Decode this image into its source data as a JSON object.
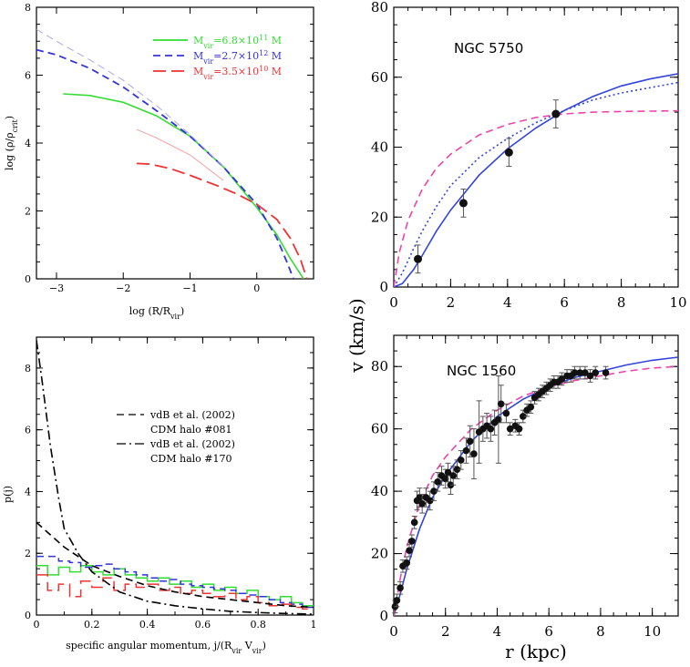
{
  "chart_data": [
    {
      "id": "density",
      "type": "line",
      "xlabel": "log (R/R",
      "xlabel_sub": "vir",
      "xlabel_close": ")",
      "ylabel": "log (ρ/ρ",
      "ylabel_sub": "crit",
      "ylabel_close": ")",
      "xlim": [
        -3.3,
        0.85
      ],
      "ylim": [
        0,
        8
      ],
      "xticks": [
        -3,
        -2,
        -1,
        0
      ],
      "xtick_labels": [
        "−3",
        "−2",
        "−1",
        "0"
      ],
      "yticks": [
        0,
        2,
        4,
        6,
        8
      ],
      "ytick_labels": [
        "0",
        "2",
        "4",
        "6",
        "8"
      ],
      "legend": [
        {
          "text": "M",
          "sub": "vir",
          "value": "=6.8×10",
          "exp": "11",
          "unit": "M",
          "color": "#33dd33"
        },
        {
          "text": "M",
          "sub": "vir",
          "value": "=2.7×10",
          "exp": "12",
          "unit": "M",
          "color": "#3333dd"
        },
        {
          "text": "M",
          "sub": "vir",
          "value": "=3.5×10",
          "exp": "10",
          "unit": "M",
          "color": "#ee3333"
        }
      ],
      "series": [
        {
          "color": "#33dd33",
          "style": "solid",
          "width": 1.6,
          "x": [
            -2.9,
            -2.5,
            -2.0,
            -1.5,
            -1.0,
            -0.5,
            0.0,
            0.3,
            0.5,
            0.6,
            0.7
          ],
          "y": [
            5.45,
            5.4,
            5.2,
            4.8,
            4.2,
            3.3,
            2.1,
            1.3,
            0.6,
            0.3,
            0.0
          ]
        },
        {
          "color": "#3333dd",
          "style": "dash",
          "width": 1.8,
          "x": [
            -3.3,
            -3.0,
            -2.5,
            -2.0,
            -1.5,
            -1.0,
            -0.5,
            0.0,
            0.3,
            0.45,
            0.55
          ],
          "y": [
            6.75,
            6.6,
            6.2,
            5.65,
            4.95,
            4.2,
            3.3,
            2.2,
            1.2,
            0.5,
            0.0
          ]
        },
        {
          "color": "#aaaaee",
          "style": "dash",
          "width": 1.0,
          "x": [
            -3.3,
            -3.0,
            -2.5,
            -2.0,
            -1.5,
            -1.0,
            -0.5
          ],
          "y": [
            7.35,
            7.0,
            6.45,
            5.85,
            5.1,
            4.25,
            3.3
          ]
        },
        {
          "color": "#ee3333",
          "style": "longdash",
          "width": 1.8,
          "x": [
            -1.8,
            -1.6,
            -1.3,
            -1.0,
            -0.6,
            -0.3,
            0.0,
            0.3,
            0.5,
            0.65,
            0.75
          ],
          "y": [
            3.4,
            3.38,
            3.25,
            3.05,
            2.75,
            2.5,
            2.2,
            1.75,
            1.2,
            0.6,
            0.0
          ]
        },
        {
          "color": "#f0a0a0",
          "style": "solid",
          "width": 1.0,
          "x": [
            -1.8,
            -1.5,
            -1.0,
            -0.5
          ],
          "y": [
            4.4,
            4.15,
            3.65,
            2.9
          ]
        }
      ]
    },
    {
      "id": "ngc5750",
      "type": "line",
      "galaxy_label": "NGC 5750",
      "xlim": [
        0,
        10
      ],
      "ylim": [
        0,
        80
      ],
      "xticks": [
        0,
        2,
        4,
        6,
        8,
        10
      ],
      "xtick_labels": [
        "0",
        "2",
        "4",
        "6",
        "8",
        "10"
      ],
      "yticks": [
        0,
        20,
        40,
        60,
        80
      ],
      "ytick_labels": [
        "0",
        "20",
        "40",
        "60",
        "80"
      ],
      "points": [
        {
          "x": 0.85,
          "y": 8,
          "err": 4
        },
        {
          "x": 2.45,
          "y": 24,
          "err": 4
        },
        {
          "x": 4.05,
          "y": 38.5,
          "err": 4
        },
        {
          "x": 5.7,
          "y": 49.5,
          "err": 4
        }
      ],
      "series": [
        {
          "color": "#3344dd",
          "style": "solid",
          "x": [
            0,
            0.3,
            0.7,
            1,
            1.5,
            2,
            3,
            4,
            5,
            6,
            7,
            8,
            9,
            10
          ],
          "y": [
            0,
            1,
            5,
            9,
            16,
            22,
            32,
            39.5,
            45.5,
            50.5,
            54.5,
            57.5,
            59.5,
            61
          ]
        },
        {
          "color": "#3344dd",
          "style": "dot",
          "x": [
            0,
            0.3,
            0.7,
            1,
            1.5,
            2,
            3,
            4,
            5,
            6,
            7,
            8,
            9,
            10
          ],
          "y": [
            0,
            4,
            11,
            16,
            23,
            29,
            37,
            42.5,
            47,
            50.5,
            53.5,
            55.5,
            57,
            58.5
          ]
        },
        {
          "color": "#ee44aa",
          "style": "dash",
          "x": [
            0,
            0.2,
            0.5,
            1,
            1.5,
            2,
            3,
            4,
            5,
            6,
            7,
            8,
            9,
            10
          ],
          "y": [
            0,
            10,
            19,
            28,
            34,
            38,
            43.5,
            46.5,
            48.5,
            49.5,
            50,
            50.2,
            50.3,
            50.4
          ]
        }
      ]
    },
    {
      "id": "ngc1560",
      "type": "line",
      "galaxy_label": "NGC 1560",
      "xlim": [
        0,
        11
      ],
      "ylim": [
        0,
        90
      ],
      "xticks": [
        0,
        2,
        4,
        6,
        8,
        10
      ],
      "xtick_labels": [
        "0",
        "2",
        "4",
        "6",
        "8",
        "10"
      ],
      "yticks": [
        0,
        20,
        40,
        60,
        80
      ],
      "ytick_labels": [
        "0",
        "20",
        "40",
        "60",
        "80"
      ],
      "xlabel": "r (kpc)",
      "shared_ylabel": "v (km/s)",
      "points": [
        {
          "x": 0.05,
          "y": 3,
          "err": 2
        },
        {
          "x": 0.12,
          "y": 5,
          "err": 2
        },
        {
          "x": 0.25,
          "y": 9,
          "err": 2
        },
        {
          "x": 0.35,
          "y": 16,
          "err": 2
        },
        {
          "x": 0.5,
          "y": 17,
          "err": 2
        },
        {
          "x": 0.6,
          "y": 21,
          "err": 2
        },
        {
          "x": 0.7,
          "y": 24,
          "err": 2
        },
        {
          "x": 0.8,
          "y": 30,
          "err": 2
        },
        {
          "x": 0.9,
          "y": 37,
          "err": 3
        },
        {
          "x": 1.0,
          "y": 38,
          "err": 3
        },
        {
          "x": 1.1,
          "y": 36,
          "err": 3
        },
        {
          "x": 1.25,
          "y": 38,
          "err": 3
        },
        {
          "x": 1.4,
          "y": 37,
          "err": 3
        },
        {
          "x": 1.55,
          "y": 40,
          "err": 3
        },
        {
          "x": 1.7,
          "y": 43,
          "err": 3
        },
        {
          "x": 1.85,
          "y": 45,
          "err": 3
        },
        {
          "x": 2.0,
          "y": 44,
          "err": 3
        },
        {
          "x": 2.1,
          "y": 46,
          "err": 3
        },
        {
          "x": 2.2,
          "y": 42,
          "err": 3
        },
        {
          "x": 2.3,
          "y": 45,
          "err": 3
        },
        {
          "x": 2.45,
          "y": 47,
          "err": 3
        },
        {
          "x": 2.6,
          "y": 50,
          "err": 3
        },
        {
          "x": 2.8,
          "y": 53,
          "err": 4
        },
        {
          "x": 2.95,
          "y": 56,
          "err": 5
        },
        {
          "x": 3.1,
          "y": 52,
          "err": 8
        },
        {
          "x": 3.3,
          "y": 59,
          "err": 10
        },
        {
          "x": 3.45,
          "y": 60,
          "err": 4
        },
        {
          "x": 3.6,
          "y": 61,
          "err": 4
        },
        {
          "x": 3.75,
          "y": 60,
          "err": 4
        },
        {
          "x": 3.9,
          "y": 62,
          "err": 4
        },
        {
          "x": 4.05,
          "y": 63,
          "err": 14
        },
        {
          "x": 4.15,
          "y": 68,
          "err": 6
        },
        {
          "x": 4.35,
          "y": 65,
          "err": 3
        },
        {
          "x": 4.5,
          "y": 60,
          "err": 2
        },
        {
          "x": 4.7,
          "y": 61,
          "err": 2
        },
        {
          "x": 4.85,
          "y": 60,
          "err": 2
        },
        {
          "x": 5.0,
          "y": 64,
          "err": 2
        },
        {
          "x": 5.15,
          "y": 66,
          "err": 2
        },
        {
          "x": 5.3,
          "y": 67,
          "err": 2
        },
        {
          "x": 5.45,
          "y": 70,
          "err": 2
        },
        {
          "x": 5.6,
          "y": 71,
          "err": 2
        },
        {
          "x": 5.75,
          "y": 72,
          "err": 2
        },
        {
          "x": 5.9,
          "y": 73,
          "err": 2
        },
        {
          "x": 6.05,
          "y": 74,
          "err": 2
        },
        {
          "x": 6.2,
          "y": 75,
          "err": 2
        },
        {
          "x": 6.35,
          "y": 75,
          "err": 2
        },
        {
          "x": 6.5,
          "y": 76,
          "err": 2
        },
        {
          "x": 6.7,
          "y": 77,
          "err": 2
        },
        {
          "x": 6.85,
          "y": 77,
          "err": 2
        },
        {
          "x": 7.0,
          "y": 78,
          "err": 2
        },
        {
          "x": 7.2,
          "y": 78,
          "err": 2
        },
        {
          "x": 7.4,
          "y": 78,
          "err": 2
        },
        {
          "x": 7.6,
          "y": 77,
          "err": 2
        },
        {
          "x": 7.8,
          "y": 78,
          "err": 2
        },
        {
          "x": 8.2,
          "y": 78,
          "err": 2
        }
      ],
      "series": [
        {
          "color": "#3344dd",
          "style": "solid",
          "x": [
            0,
            0.25,
            0.5,
            1,
            1.5,
            2,
            3,
            4,
            5,
            6,
            7,
            8,
            9,
            10,
            11
          ],
          "y": [
            0,
            7,
            15,
            28,
            38,
            45,
            56,
            64,
            69.5,
            73.5,
            76.5,
            78.5,
            80.5,
            82,
            83
          ]
        },
        {
          "color": "#ee44aa",
          "style": "dash",
          "x": [
            0,
            0.25,
            0.5,
            1,
            1.5,
            2,
            3,
            4,
            5,
            6,
            7,
            8,
            9,
            10,
            11
          ],
          "y": [
            0,
            12,
            22,
            36,
            45,
            51,
            60,
            66,
            70.5,
            73.5,
            75.5,
            77,
            78.5,
            79.5,
            80
          ]
        }
      ]
    },
    {
      "id": "angular-momentum",
      "type": "line",
      "xlabel": "specific angular momentum, j/(R",
      "xlabel_sub1": "vir",
      "xlabel_mid": " V",
      "xlabel_sub2": "vir",
      "xlabel_close": ")",
      "ylabel": "p(j)",
      "xlim": [
        0,
        1
      ],
      "ylim": [
        0,
        9
      ],
      "xticks": [
        0,
        0.2,
        0.4,
        0.6,
        0.8,
        1
      ],
      "xtick_labels": [
        "0",
        "0.2",
        "0.4",
        "0.6",
        "0.8",
        "1"
      ],
      "yticks": [
        0,
        2,
        4,
        6,
        8
      ],
      "ytick_labels": [
        "0",
        "2",
        "4",
        "6",
        "8"
      ],
      "legend": [
        {
          "line1": "vdB et al. (2002)",
          "line2": "CDM halo #081",
          "style": "dash"
        },
        {
          "line1": "vdB et al. (2002)",
          "line2": "CDM halo #170",
          "style": "dashdot"
        }
      ],
      "series": [
        {
          "color": "#000000",
          "style": "dash",
          "x": [
            0,
            0.05,
            0.1,
            0.15,
            0.2,
            0.3,
            0.4,
            0.5,
            0.6,
            0.7,
            0.8,
            0.9,
            1.0
          ],
          "y": [
            3.0,
            2.6,
            2.2,
            1.9,
            1.6,
            1.25,
            0.95,
            0.75,
            0.6,
            0.5,
            0.4,
            0.3,
            0.25
          ]
        },
        {
          "color": "#000000",
          "style": "dashdot",
          "x": [
            0,
            0.02,
            0.05,
            0.08,
            0.1,
            0.15,
            0.2,
            0.3,
            0.4,
            0.5,
            0.6,
            0.7,
            0.8,
            0.9,
            1.0
          ],
          "y": [
            8.9,
            7.6,
            5.5,
            3.8,
            2.8,
            2.0,
            1.4,
            0.75,
            0.45,
            0.3,
            0.2,
            0.12,
            0.08,
            0.05,
            0.03
          ]
        }
      ],
      "histograms": [
        {
          "color": "#33dd33",
          "edges": [
            0,
            0.04,
            0.08,
            0.12,
            0.16,
            0.2,
            0.24,
            0.28,
            0.32,
            0.36,
            0.4,
            0.44,
            0.48,
            0.52,
            0.56,
            0.6,
            0.64,
            0.68,
            0.72,
            0.76,
            0.8,
            0.84,
            0.88,
            0.92,
            0.96,
            1.0
          ],
          "values": [
            1.6,
            1.3,
            1.55,
            1.4,
            1.6,
            1.4,
            1.3,
            1.5,
            1.3,
            1.2,
            1.1,
            1.2,
            1.0,
            1.1,
            0.9,
            1.0,
            0.8,
            0.9,
            0.7,
            0.8,
            0.6,
            0.5,
            0.6,
            0.4,
            0.3
          ]
        },
        {
          "color": "#3333dd",
          "edges": [
            0,
            0.04,
            0.08,
            0.12,
            0.16,
            0.2,
            0.24,
            0.28,
            0.32,
            0.36,
            0.4,
            0.44,
            0.48,
            0.52,
            0.56,
            0.6,
            0.64,
            0.68,
            0.72,
            0.76,
            0.8,
            0.84,
            0.88,
            0.92,
            0.96,
            1.0
          ],
          "values": [
            1.9,
            1.9,
            1.75,
            1.7,
            1.55,
            1.6,
            1.65,
            1.5,
            1.4,
            1.3,
            1.2,
            1.1,
            1.15,
            1.0,
            0.95,
            0.9,
            0.85,
            0.8,
            0.7,
            0.65,
            0.6,
            0.5,
            0.4,
            0.35,
            0.25
          ]
        },
        {
          "color": "#ee3333",
          "edges": [
            0,
            0.04,
            0.08,
            0.12,
            0.16,
            0.2,
            0.24,
            0.28,
            0.32,
            0.36,
            0.4,
            0.44,
            0.48,
            0.52,
            0.56,
            0.6,
            0.64,
            0.68,
            0.72,
            0.76,
            0.8,
            0.84,
            0.88,
            0.92,
            0.96,
            1.0
          ],
          "values": [
            1.3,
            0.8,
            1.0,
            0.6,
            1.1,
            0.9,
            1.2,
            0.8,
            1.0,
            0.9,
            1.0,
            0.8,
            0.9,
            0.7,
            0.8,
            0.7,
            0.6,
            0.7,
            0.5,
            0.6,
            0.4,
            0.3,
            0.35,
            0.25,
            0.2
          ]
        }
      ]
    }
  ]
}
